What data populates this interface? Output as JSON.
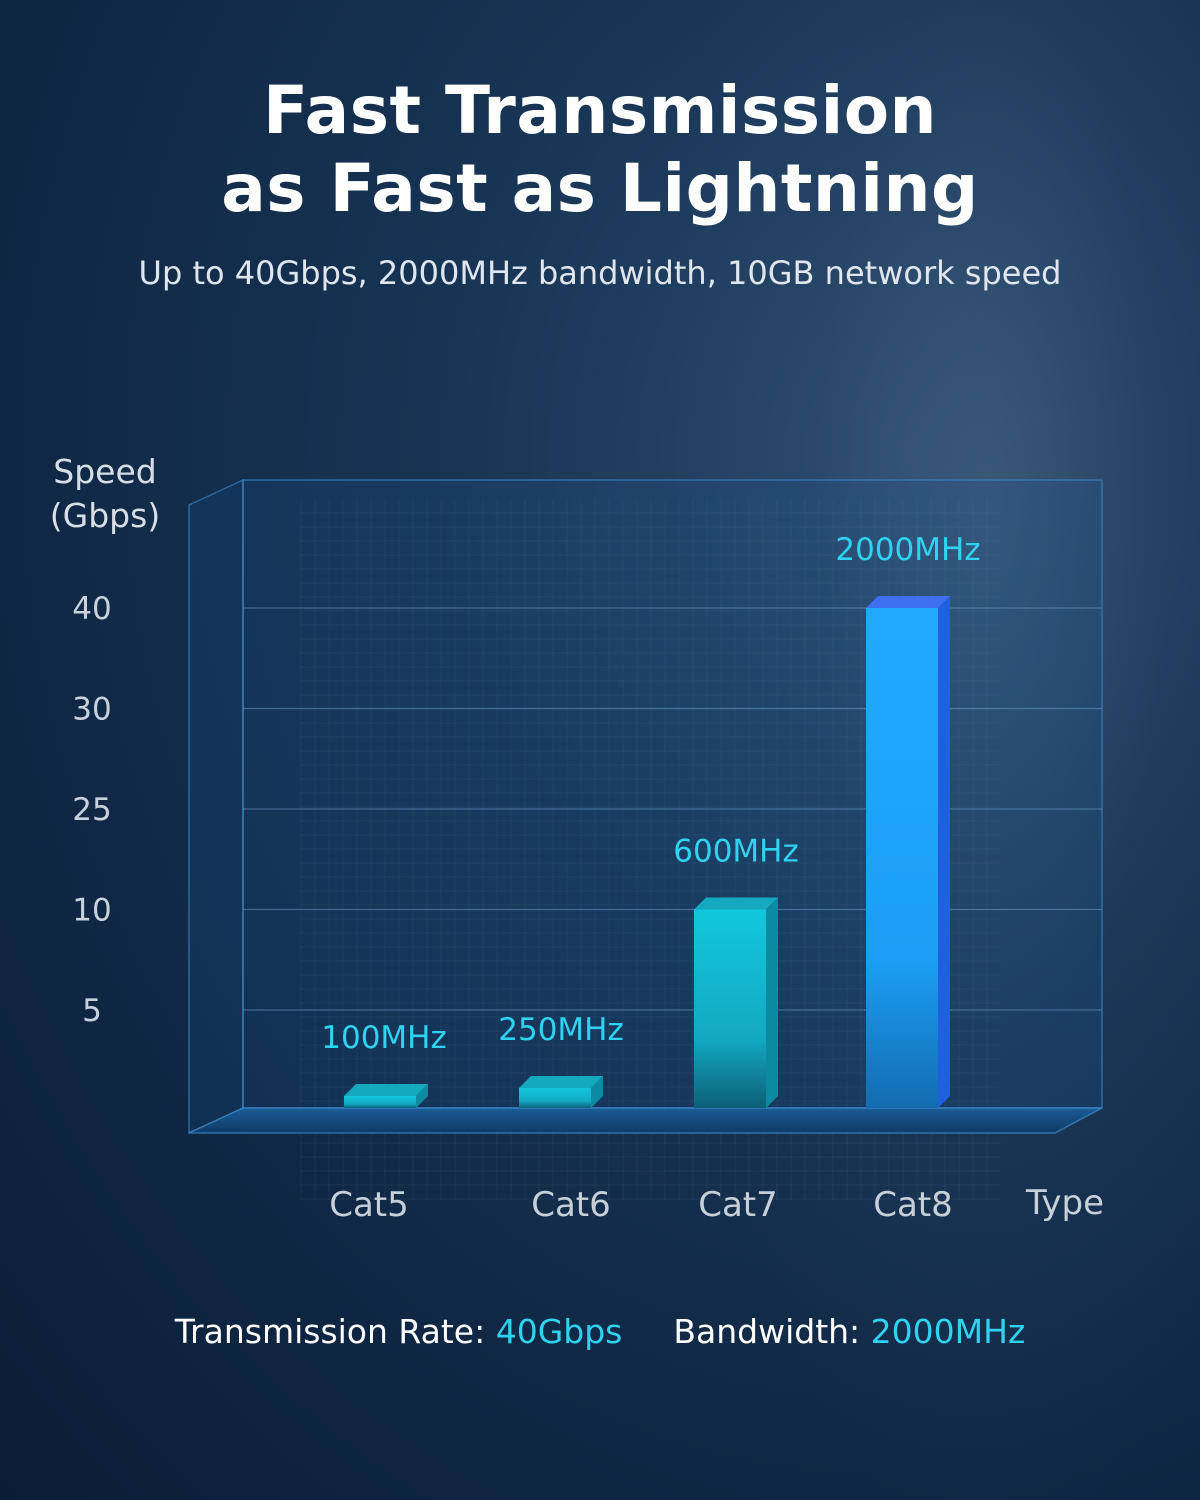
{
  "title_line1": "Fast Transmission",
  "title_line2": "as Fast as Lightning",
  "subtitle": "Up to 40Gbps, 2000MHz bandwidth, 10GB network speed",
  "footer": {
    "rate_label": "Transmission Rate:",
    "rate_value": "40Gbps",
    "bandwidth_label": "Bandwidth:",
    "bandwidth_value": "2000MHz"
  },
  "colors": {
    "accent": "#2fd2ef",
    "bar_teal": "#18c1d8",
    "bar_blue": "#1fa8ff",
    "background": "#0f2744"
  },
  "chart_data": {
    "type": "bar",
    "ylabel_line1": "Speed",
    "ylabel_line2": "(Gbps)",
    "xlabel": "Type",
    "categories": [
      "Cat5",
      "Cat6",
      "Cat7",
      "Cat8"
    ],
    "y_ticks": [
      "40",
      "30",
      "25",
      "10",
      "5"
    ],
    "values": [
      0.1,
      0.25,
      10,
      40
    ],
    "bar_labels": [
      "100MHz",
      "250MHz",
      "600MHz",
      "2000MHz"
    ],
    "bar_colors": [
      "#18c1d8",
      "#18c1d8",
      "#18c1d8",
      "#1fa8ff"
    ],
    "ylim": [
      0,
      50
    ],
    "grid": true
  }
}
